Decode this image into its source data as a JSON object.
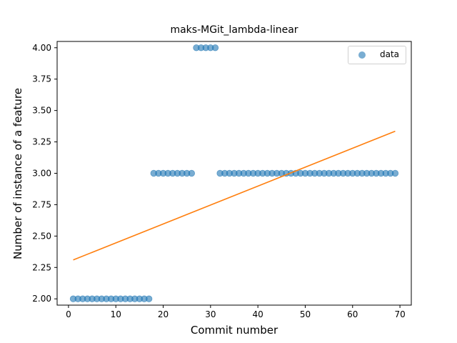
{
  "chart_data": {
    "type": "scatter",
    "title": "maks-MGit_lambda-linear",
    "xlabel": "Commit number",
    "ylabel": "Number of instance of a feature",
    "xlim": [
      -2.4,
      72.4
    ],
    "ylim": [
      1.95,
      4.05
    ],
    "xticks": [
      "0",
      "10",
      "20",
      "30",
      "40",
      "50",
      "60",
      "70"
    ],
    "yticks": [
      "2.00",
      "2.25",
      "2.50",
      "2.75",
      "3.00",
      "3.25",
      "3.50",
      "3.75",
      "4.00"
    ],
    "grid": false,
    "legend_position": "top-right",
    "series": [
      {
        "name": "data",
        "kind": "scatter",
        "color": "#1f77b4",
        "x": [
          1,
          2,
          3,
          4,
          5,
          6,
          7,
          8,
          9,
          10,
          11,
          12,
          13,
          14,
          15,
          16,
          17,
          18,
          19,
          20,
          21,
          22,
          23,
          24,
          25,
          26,
          27,
          28,
          29,
          30,
          31,
          32,
          33,
          34,
          35,
          36,
          37,
          38,
          39,
          40,
          41,
          42,
          43,
          44,
          45,
          46,
          47,
          48,
          49,
          50,
          51,
          52,
          53,
          54,
          55,
          56,
          57,
          58,
          59,
          60,
          61,
          62,
          63,
          64,
          65,
          66,
          67,
          68,
          69
        ],
        "y": [
          2,
          2,
          2,
          2,
          2,
          2,
          2,
          2,
          2,
          2,
          2,
          2,
          2,
          2,
          2,
          2,
          2,
          3,
          3,
          3,
          3,
          3,
          3,
          3,
          3,
          3,
          4,
          4,
          4,
          4,
          4,
          3,
          3,
          3,
          3,
          3,
          3,
          3,
          3,
          3,
          3,
          3,
          3,
          3,
          3,
          3,
          3,
          3,
          3,
          3,
          3,
          3,
          3,
          3,
          3,
          3,
          3,
          3,
          3,
          3,
          3,
          3,
          3,
          3,
          3,
          3,
          3,
          3,
          3
        ]
      },
      {
        "kind": "line",
        "color": "#ff7f0e",
        "x": [
          1,
          69
        ],
        "y": [
          2.31,
          3.335
        ]
      }
    ]
  }
}
